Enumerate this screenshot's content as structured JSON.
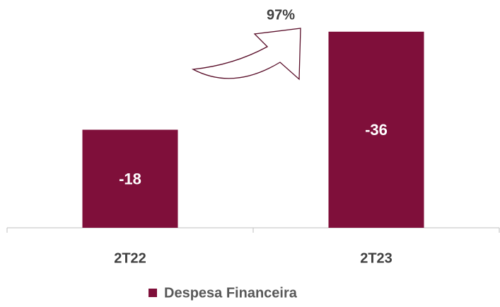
{
  "chart_data": {
    "type": "bar",
    "categories": [
      "2T22",
      "2T23"
    ],
    "series": [
      {
        "name": "Despesa Financeira",
        "color": "#7f0f3a",
        "values": [
          -18,
          -36
        ]
      }
    ],
    "ylim": [
      0,
      -40
    ],
    "annotation": "97%",
    "legend": "bottom"
  }
}
